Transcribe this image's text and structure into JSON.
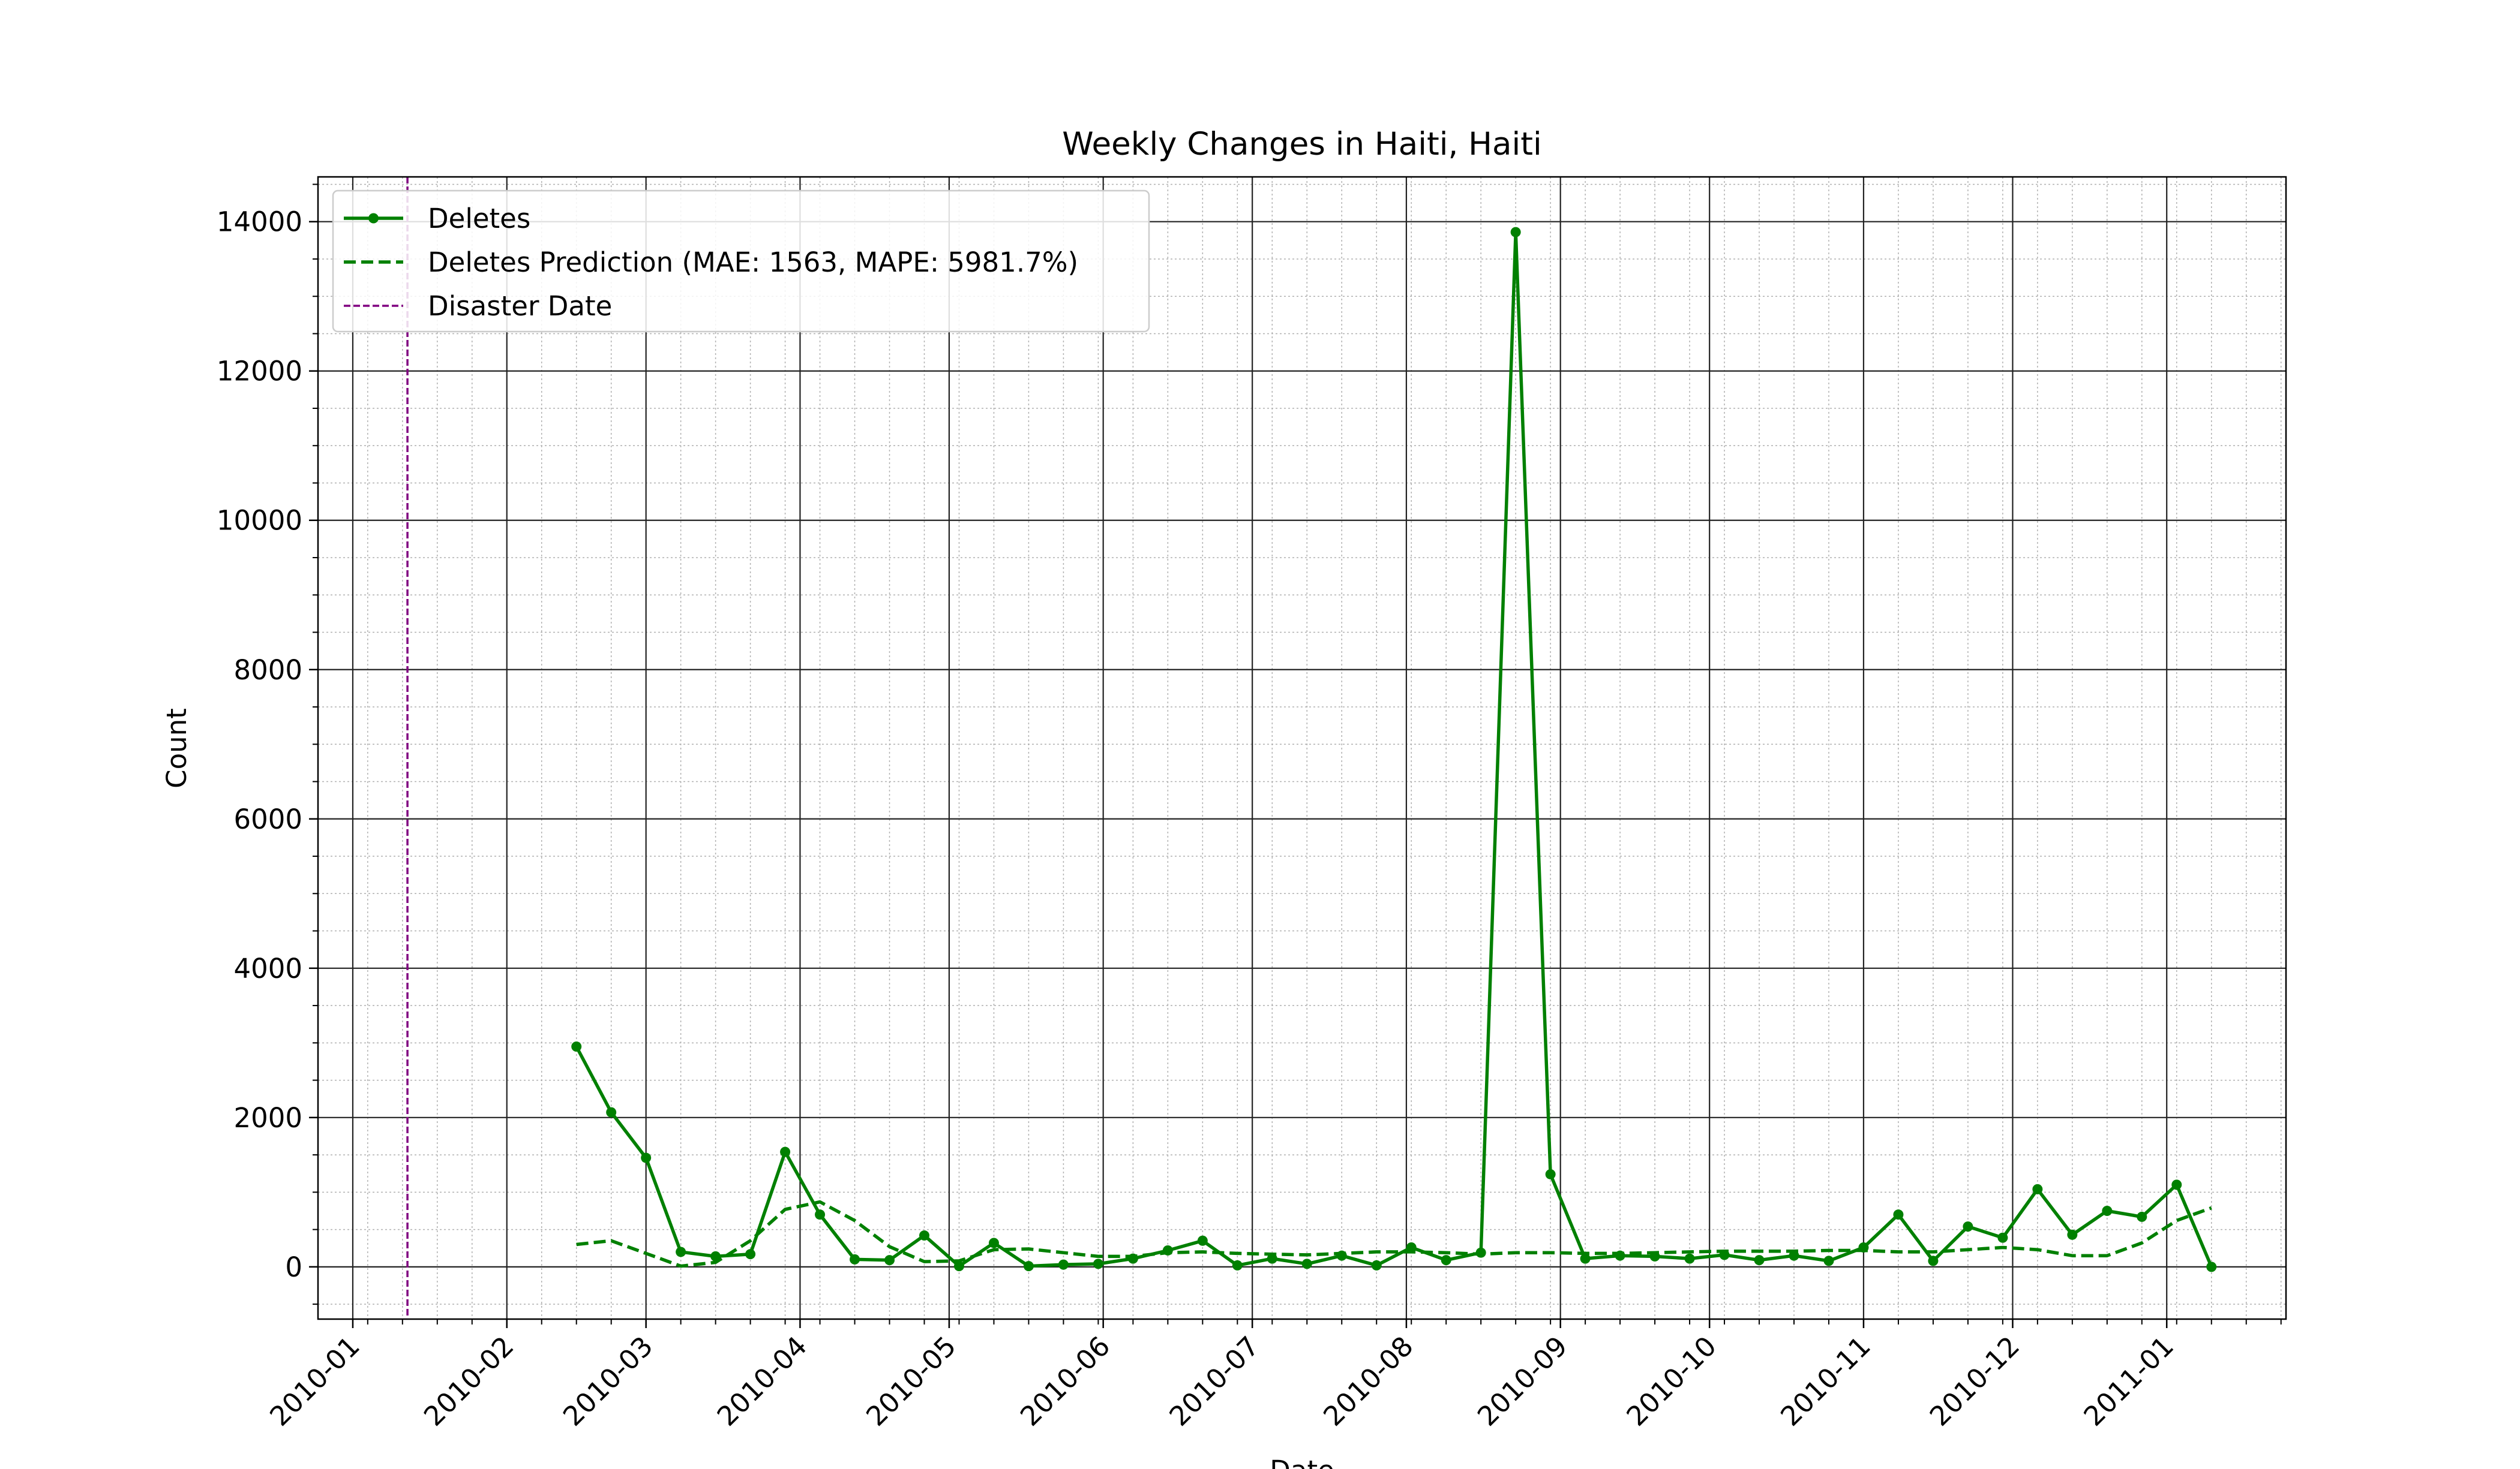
{
  "chart_data": {
    "type": "line",
    "title": "Weekly Changes in Haiti, Haiti",
    "xlabel": "Date",
    "ylabel": "Count",
    "x_ticks": [
      "2010-01-01",
      "2010-02-01",
      "2010-03-01",
      "2010-04-01",
      "2010-05-01",
      "2010-06-01",
      "2010-07-01",
      "2010-08-01",
      "2010-09-01",
      "2010-10-01",
      "2010-11-01",
      "2010-12-01",
      "2011-01-01"
    ],
    "x_tick_labels": [
      "2010-01",
      "2010-02",
      "2010-03",
      "2010-04",
      "2010-05",
      "2010-06",
      "2010-07",
      "2010-08",
      "2010-09",
      "2010-10",
      "2010-11",
      "2010-12",
      "2011-01"
    ],
    "xlim": [
      "2009-12-25",
      "2011-01-25"
    ],
    "y_ticks": [
      0,
      2000,
      4000,
      6000,
      8000,
      10000,
      12000,
      14000
    ],
    "y_tick_labels": [
      "0",
      "2000",
      "4000",
      "6000",
      "8000",
      "10000",
      "12000",
      "14000"
    ],
    "ylim": [
      -700,
      14600
    ],
    "grid": true,
    "minor_grid": true,
    "legend_position": "top-left",
    "disaster_date": "2010-01-12",
    "series": [
      {
        "name": "Deletes",
        "style": "solid-marker",
        "color": "#008000",
        "points": [
          [
            "2010-02-15",
            2950
          ],
          [
            "2010-02-22",
            2070
          ],
          [
            "2010-03-01",
            1460
          ],
          [
            "2010-03-08",
            200
          ],
          [
            "2010-03-15",
            140
          ],
          [
            "2010-03-22",
            170
          ],
          [
            "2010-03-29",
            1540
          ],
          [
            "2010-04-05",
            700
          ],
          [
            "2010-04-12",
            100
          ],
          [
            "2010-04-19",
            90
          ],
          [
            "2010-04-26",
            420
          ],
          [
            "2010-05-03",
            10
          ],
          [
            "2010-05-10",
            320
          ],
          [
            "2010-05-17",
            10
          ],
          [
            "2010-05-24",
            30
          ],
          [
            "2010-05-31",
            40
          ],
          [
            "2010-06-07",
            110
          ],
          [
            "2010-06-14",
            220
          ],
          [
            "2010-06-21",
            350
          ],
          [
            "2010-06-28",
            20
          ],
          [
            "2010-07-05",
            110
          ],
          [
            "2010-07-12",
            40
          ],
          [
            "2010-07-19",
            150
          ],
          [
            "2010-07-26",
            20
          ],
          [
            "2010-08-02",
            260
          ],
          [
            "2010-08-09",
            90
          ],
          [
            "2010-08-16",
            190
          ],
          [
            "2010-08-23",
            13860
          ],
          [
            "2010-08-30",
            1240
          ],
          [
            "2010-09-06",
            110
          ],
          [
            "2010-09-13",
            150
          ],
          [
            "2010-09-20",
            140
          ],
          [
            "2010-09-27",
            110
          ],
          [
            "2010-10-04",
            160
          ],
          [
            "2010-10-11",
            90
          ],
          [
            "2010-10-18",
            150
          ],
          [
            "2010-10-25",
            80
          ],
          [
            "2010-11-01",
            260
          ],
          [
            "2010-11-08",
            700
          ],
          [
            "2010-11-15",
            80
          ],
          [
            "2010-11-22",
            540
          ],
          [
            "2010-11-29",
            390
          ],
          [
            "2010-12-06",
            1040
          ],
          [
            "2010-12-13",
            430
          ],
          [
            "2010-12-20",
            750
          ],
          [
            "2010-12-27",
            670
          ],
          [
            "2011-01-03",
            1100
          ],
          [
            "2011-01-10",
            0
          ]
        ]
      },
      {
        "name": "Deletes Prediction (MAE: 1563, MAPE: 5981.7%)",
        "style": "dashed",
        "color": "#008000",
        "points": [
          [
            "2010-02-15",
            300
          ],
          [
            "2010-02-22",
            350
          ],
          [
            "2010-03-01",
            180
          ],
          [
            "2010-03-08",
            10
          ],
          [
            "2010-03-15",
            60
          ],
          [
            "2010-03-22",
            350
          ],
          [
            "2010-03-29",
            770
          ],
          [
            "2010-04-05",
            870
          ],
          [
            "2010-04-12",
            620
          ],
          [
            "2010-04-19",
            270
          ],
          [
            "2010-04-26",
            70
          ],
          [
            "2010-05-03",
            80
          ],
          [
            "2010-05-10",
            230
          ],
          [
            "2010-05-17",
            240
          ],
          [
            "2010-05-24",
            190
          ],
          [
            "2010-05-31",
            140
          ],
          [
            "2010-06-07",
            140
          ],
          [
            "2010-06-14",
            190
          ],
          [
            "2010-06-21",
            200
          ],
          [
            "2010-06-28",
            180
          ],
          [
            "2010-07-05",
            170
          ],
          [
            "2010-07-12",
            160
          ],
          [
            "2010-07-19",
            180
          ],
          [
            "2010-07-26",
            200
          ],
          [
            "2010-08-02",
            200
          ],
          [
            "2010-08-09",
            190
          ],
          [
            "2010-08-16",
            170
          ],
          [
            "2010-08-23",
            190
          ],
          [
            "2010-08-30",
            190
          ],
          [
            "2010-09-06",
            180
          ],
          [
            "2010-09-13",
            180
          ],
          [
            "2010-09-20",
            190
          ],
          [
            "2010-09-27",
            200
          ],
          [
            "2010-10-04",
            210
          ],
          [
            "2010-10-11",
            210
          ],
          [
            "2010-10-18",
            210
          ],
          [
            "2010-10-25",
            220
          ],
          [
            "2010-11-01",
            220
          ],
          [
            "2010-11-08",
            200
          ],
          [
            "2010-11-15",
            200
          ],
          [
            "2010-11-22",
            230
          ],
          [
            "2010-11-29",
            260
          ],
          [
            "2010-12-06",
            230
          ],
          [
            "2010-12-13",
            150
          ],
          [
            "2010-12-20",
            150
          ],
          [
            "2010-12-27",
            320
          ],
          [
            "2011-01-03",
            620
          ],
          [
            "2011-01-10",
            790
          ]
        ]
      }
    ],
    "legend": [
      {
        "label": "Deletes",
        "style": "solid-marker",
        "color": "#008000"
      },
      {
        "label": "Deletes Prediction (MAE: 1563, MAPE: 5981.7%)",
        "style": "dashed",
        "color": "#008000"
      },
      {
        "label": "Disaster Date",
        "style": "dashed-thin",
        "color": "#800080"
      }
    ]
  }
}
